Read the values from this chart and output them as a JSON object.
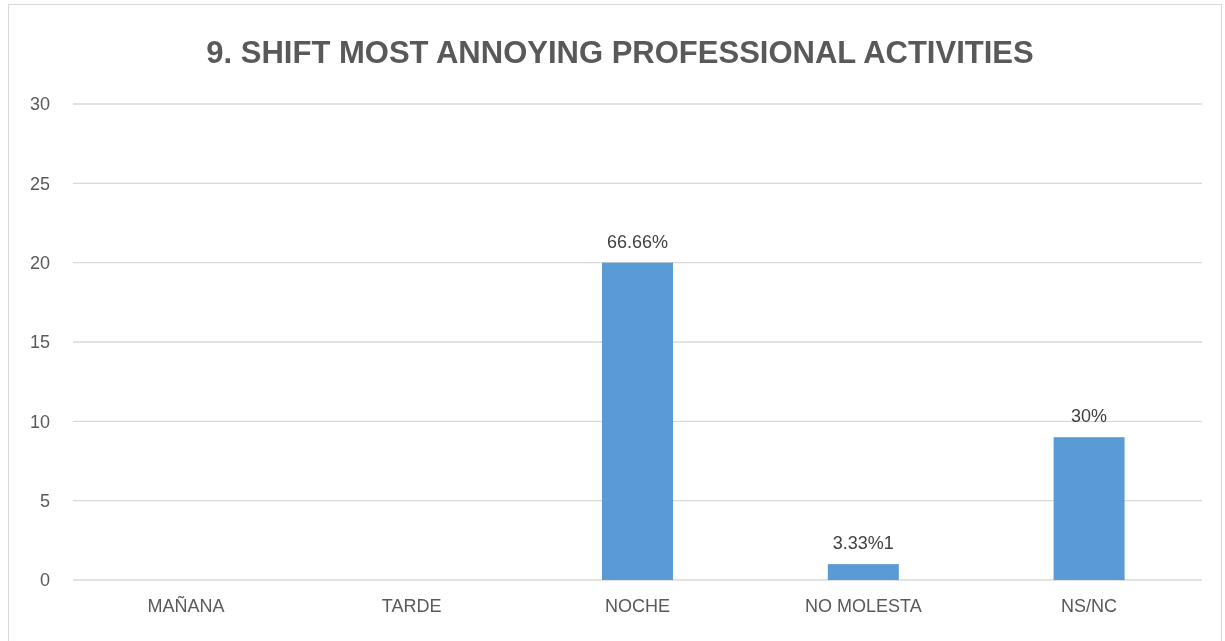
{
  "chart_data": {
    "type": "bar",
    "title": "9. SHIFT MOST ANNOYING PROFESSIONAL ACTIVITIES",
    "categories": [
      "MAÑANA",
      "TARDE",
      "NOCHE",
      "NO MOLESTA",
      "NS/NC"
    ],
    "values": [
      0,
      0,
      20,
      1,
      9
    ],
    "color": "#5b9bd5",
    "annotations": [
      {
        "text": "66.66%",
        "x": "NOCHE",
        "y": 20
      },
      {
        "text": "3.33%1",
        "x": "NO MOLESTA",
        "y": 1
      },
      {
        "text": "30%",
        "x": "NS/NC",
        "y": 9
      }
    ],
    "ylim": [
      0,
      30
    ],
    "yticks": [
      0,
      5,
      10,
      15,
      20,
      25,
      30
    ],
    "grid": "y"
  }
}
